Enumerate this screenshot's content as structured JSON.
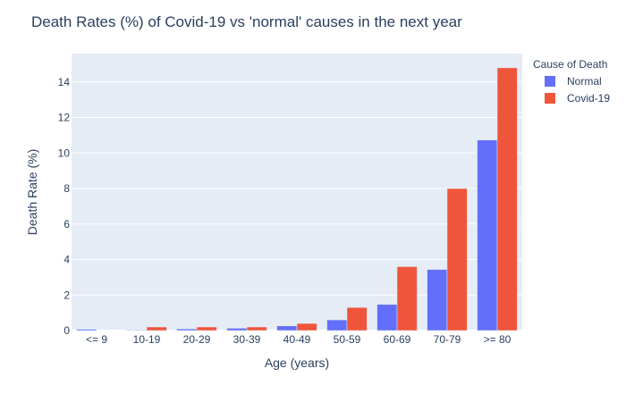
{
  "chart_data": {
    "type": "bar",
    "title": "Death Rates (%) of Covid-19 vs 'normal' causes in the next year",
    "xlabel": "Age (years)",
    "ylabel": "Death Rate (%)",
    "categories": [
      "<= 9",
      "10-19",
      "20-29",
      "30-39",
      "40-49",
      "50-59",
      "60-69",
      "70-79",
      ">= 80"
    ],
    "series": [
      {
        "name": "Normal",
        "color": "#636efa",
        "values": [
          0.07,
          0.03,
          0.09,
          0.13,
          0.26,
          0.6,
          1.47,
          3.44,
          10.73
        ]
      },
      {
        "name": "Covid-19",
        "color": "#ef553b",
        "values": [
          0.0,
          0.2,
          0.2,
          0.2,
          0.4,
          1.3,
          3.6,
          8.0,
          14.8
        ]
      }
    ],
    "ylim": [
      0,
      15.6
    ],
    "yticks": [
      0,
      2,
      4,
      6,
      8,
      10,
      12,
      14
    ],
    "legend_title": "Cause of Death",
    "legend_position": "top-right",
    "grid": true,
    "background": "#e5ecf6",
    "gridline_color": "#ffffff"
  }
}
